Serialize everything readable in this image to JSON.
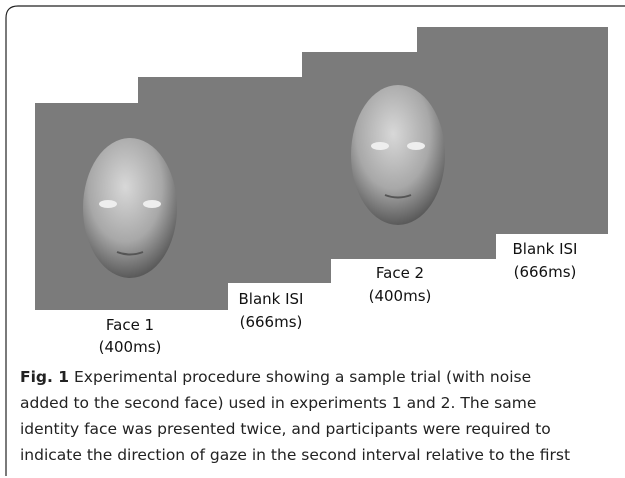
{
  "panels": [
    {
      "name": "Face 1",
      "duration": "(400ms)"
    },
    {
      "name": "Blank ISI",
      "duration": "(666ms)"
    },
    {
      "name": "Face 2",
      "duration": "(400ms)"
    },
    {
      "name": "Blank ISI",
      "duration": "(666ms)"
    }
  ],
  "caption": {
    "label": "Fig. 1",
    "lines": [
      "Experimental procedure showing a sample trial (with noise",
      "added to the second face) used in experiments 1 and 2. The same",
      "identity face was presented twice, and participants were required to",
      "indicate the direction of gaze in the second interval relative to the first"
    ]
  }
}
